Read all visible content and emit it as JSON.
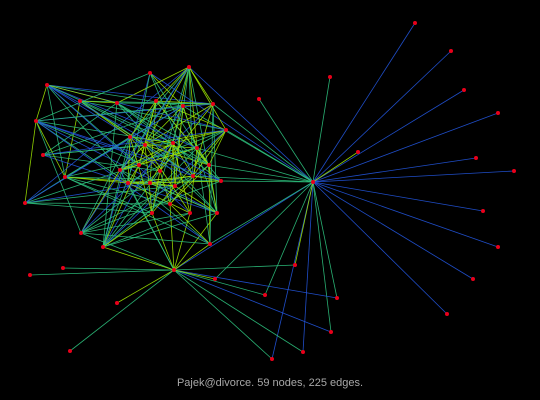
{
  "caption": "Pajek@divorce. 59 nodes, 225 edges.",
  "colors": {
    "background": "#000000",
    "node": "#e8001a",
    "edge_dense": "#9ee600",
    "edge_mid": "#2ec27e",
    "edge_long": "#2255dd",
    "caption": "#a8a8a8"
  }
}
